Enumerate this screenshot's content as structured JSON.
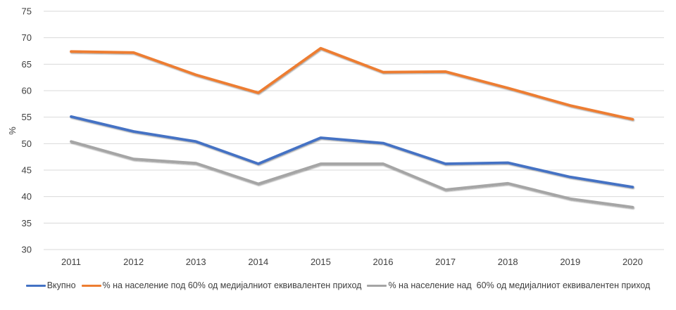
{
  "chart_data": {
    "type": "line",
    "title": "",
    "xlabel": "",
    "ylabel": "%",
    "ylim": [
      30,
      75
    ],
    "y_ticks": [
      30,
      35,
      40,
      45,
      50,
      55,
      60,
      65,
      70,
      75
    ],
    "grid": true,
    "legend_position": "bottom",
    "categories": [
      "2011",
      "2012",
      "2013",
      "2014",
      "2015",
      "2016",
      "2017",
      "2018",
      "2019",
      "2020"
    ],
    "series": [
      {
        "name": "Вкупно",
        "color": "#4472C4",
        "values": [
          55.1,
          52.3,
          50.4,
          46.2,
          51.1,
          50.1,
          46.2,
          46.4,
          43.7,
          41.8
        ]
      },
      {
        "name": "% на население под 60% од медијалниот еквивалентен приход",
        "color": "#ED7D31",
        "values": [
          67.4,
          67.2,
          63.0,
          59.6,
          68.0,
          63.5,
          63.6,
          60.5,
          57.2,
          54.6
        ]
      },
      {
        "name": "% на население над  60% од медијалниот еквивалентен приход",
        "color": "#A5A5A5",
        "values": [
          50.4,
          47.1,
          46.3,
          42.4,
          46.2,
          46.2,
          41.3,
          42.5,
          39.6,
          38.0
        ]
      }
    ]
  }
}
